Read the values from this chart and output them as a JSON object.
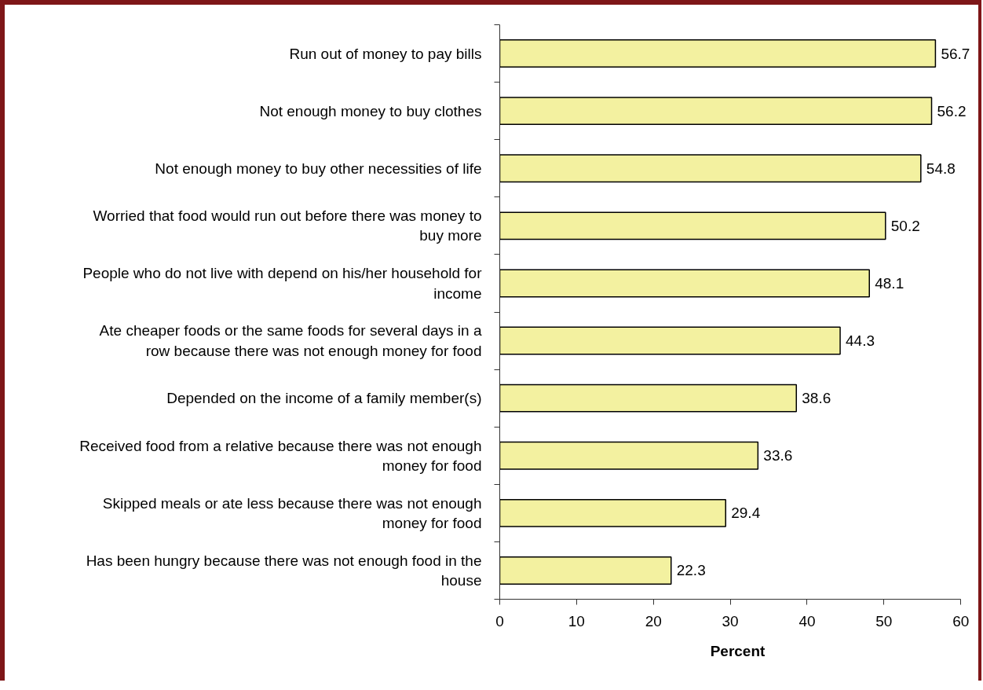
{
  "chart_data": {
    "type": "bar",
    "orientation": "horizontal",
    "xlabel": "Percent",
    "categories": [
      "Run out of money to pay bills",
      "Not enough money to buy clothes",
      "Not enough money to buy other necessities of life",
      "Worried that food would run out before there was money to buy more",
      "People who do not live with depend on his/her household for income",
      "Ate cheaper foods or the same foods for several days in a row because there was not enough money for food",
      "Depended on the income of a family member(s)",
      "Received food from a relative because there was not enough money for food",
      "Skipped meals or ate less because there was not enough money for food",
      "Has been hungry because there was not enough food in the house"
    ],
    "values": [
      56.7,
      56.2,
      54.8,
      50.2,
      48.1,
      44.3,
      38.6,
      33.6,
      29.4,
      22.3
    ],
    "color": "#f3f1a0",
    "xlim": [
      0,
      60
    ],
    "xticks": [
      0,
      10,
      20,
      30,
      40,
      50,
      60
    ],
    "data_labels": true
  }
}
